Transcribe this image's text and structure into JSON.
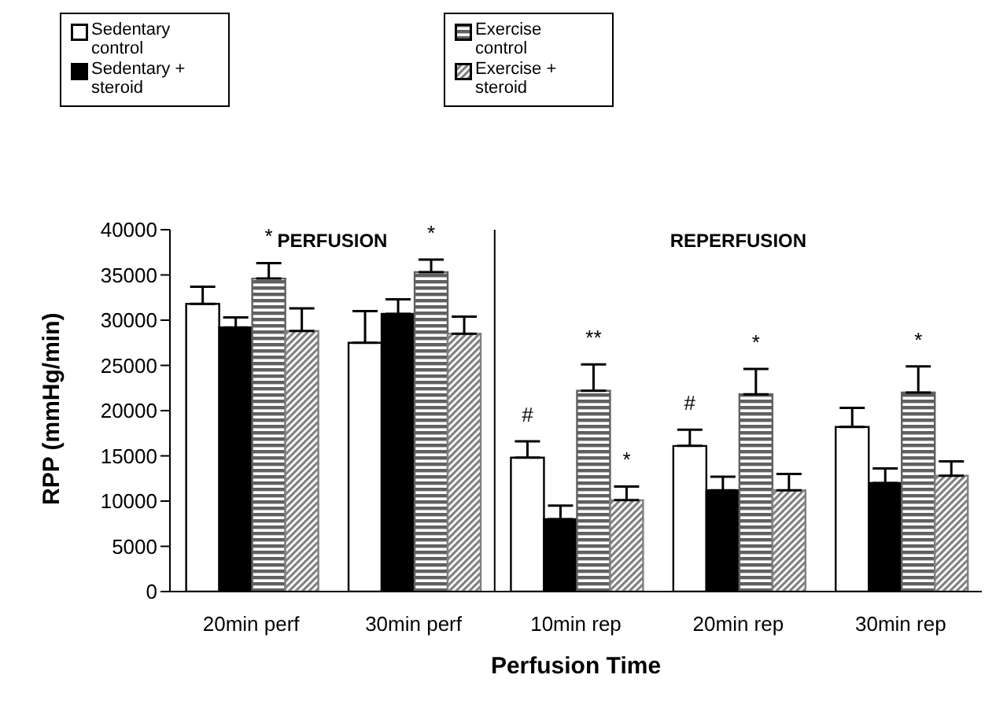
{
  "chart_data": {
    "type": "bar",
    "xlabel": "Perfusion Time",
    "ylabel": "RPP (mmHg/min)",
    "categories": [
      "20min perf",
      "30min perf",
      "10min rep",
      "20min rep",
      "30min rep"
    ],
    "series": [
      {
        "name": "Sedentary control",
        "color": "#ffffff",
        "values": [
          31800,
          27500,
          14800,
          16100,
          18200
        ],
        "errors": [
          [
            31800,
            33700
          ],
          [
            27500,
            31000
          ],
          [
            14800,
            16600
          ],
          [
            16100,
            17900
          ],
          [
            18200,
            20300
          ]
        ]
      },
      {
        "name": "Sedentary + steroid",
        "color": "#000000",
        "values": [
          29200,
          30700,
          8000,
          11200,
          12000
        ],
        "errors": [
          [
            29200,
            30300
          ],
          [
            30700,
            32300
          ],
          [
            8000,
            9500
          ],
          [
            11200,
            12700
          ],
          [
            12000,
            13600
          ]
        ]
      },
      {
        "name": "Exercise control",
        "color": "#606060",
        "values": [
          34600,
          35300,
          22200,
          21800,
          22000
        ],
        "errors": [
          [
            34600,
            36300
          ],
          [
            35300,
            36700
          ],
          [
            22200,
            25100
          ],
          [
            21800,
            24600
          ],
          [
            22000,
            24900
          ]
        ]
      },
      {
        "name": "Exercise + steroid",
        "color": "#808080",
        "values": [
          28800,
          28500,
          10100,
          11200,
          12800
        ],
        "errors": [
          [
            28800,
            31300
          ],
          [
            28500,
            30400
          ],
          [
            10100,
            11600
          ],
          [
            11200,
            13000
          ],
          [
            12800,
            14400
          ]
        ]
      }
    ],
    "ylim": [
      0,
      40000
    ],
    "yticks": [
      0,
      5000,
      10000,
      15000,
      20000,
      25000,
      30000,
      35000,
      40000
    ],
    "grid": false,
    "legend": "top",
    "annotations": [
      "PERFUSION",
      "REPERFUSION",
      {
        "text": "*",
        "x": "20min perf",
        "y": 36300
      },
      {
        "text": "*",
        "x": "30min perf",
        "y": 36700
      },
      {
        "text": "#",
        "x": "10min rep",
        "y": 16600
      },
      {
        "text": "**",
        "x": "10min rep",
        "y": 25100
      },
      {
        "text": "*",
        "x": "10min rep",
        "y": 11600
      },
      {
        "text": "#",
        "x": "20min rep",
        "y": 17900
      },
      {
        "text": "*",
        "x": "20min rep",
        "y": 24600
      },
      {
        "text": "*",
        "x": "30min rep",
        "y": 24900
      }
    ]
  }
}
